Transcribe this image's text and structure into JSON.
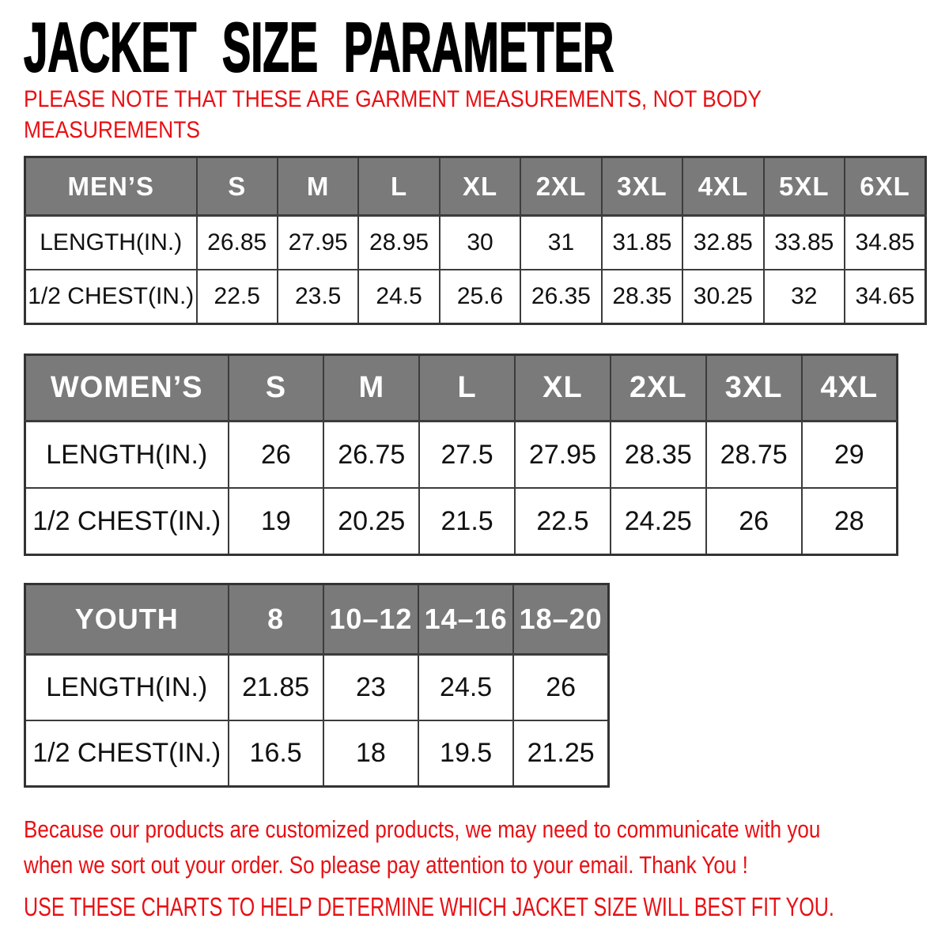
{
  "title": "JACKET SIZE PARAMETER",
  "note_lines": [
    "PLEASE NOTE THAT THESE ARE GARMENT MEASUREMENTS, NOT BODY",
    "MEASUREMENTS"
  ],
  "tables": {
    "mens": {
      "columns": [
        "MEN’S",
        "S",
        "M",
        "L",
        "XL",
        "2XL",
        "3XL",
        "4XL",
        "5XL",
        "6XL"
      ],
      "rows": [
        {
          "label": "LENGTH(IN.)",
          "values": [
            "26.85",
            "27.95",
            "28.95",
            "30",
            "31",
            "31.85",
            "32.85",
            "33.85",
            "34.85"
          ]
        },
        {
          "label": "1/2 CHEST(IN.)",
          "values": [
            "22.5",
            "23.5",
            "24.5",
            "25.6",
            "26.35",
            "28.35",
            "30.25",
            "32",
            "34.65"
          ]
        }
      ]
    },
    "womens": {
      "columns": [
        "WOMEN’S",
        "S",
        "M",
        "L",
        "XL",
        "2XL",
        "3XL",
        "4XL"
      ],
      "rows": [
        {
          "label": "LENGTH(IN.)",
          "values": [
            "26",
            "26.75",
            "27.5",
            "27.95",
            "28.35",
            "28.75",
            "29"
          ]
        },
        {
          "label": "1/2 CHEST(IN.)",
          "values": [
            "19",
            "20.25",
            "21.5",
            "22.5",
            "24.25",
            "26",
            "28"
          ]
        }
      ]
    },
    "youth": {
      "columns": [
        "YOUTH",
        "8",
        "10–12",
        "14–16",
        "18–20"
      ],
      "rows": [
        {
          "label": "LENGTH(IN.)",
          "values": [
            "21.85",
            "23",
            "24.5",
            "26"
          ]
        },
        {
          "label": "1/2 CHEST(IN.)",
          "values": [
            "16.5",
            "18",
            "19.5",
            "21.25"
          ]
        }
      ]
    }
  },
  "footer": {
    "para_lines": [
      "Because our products are customized products, we may need to communicate with you",
      "when we sort out your order. So please pay attention to your email. Thank You !"
    ],
    "final_line": "USE THESE CHARTS TO HELP DETERMINE WHICH JACKET SIZE WILL BEST FIT YOU."
  },
  "colors": {
    "header_bg": "#7a7a7a",
    "header_text": "#ffffff",
    "border": "#3c3c3c",
    "accent_red": "#e81014",
    "text_black": "#111111"
  }
}
